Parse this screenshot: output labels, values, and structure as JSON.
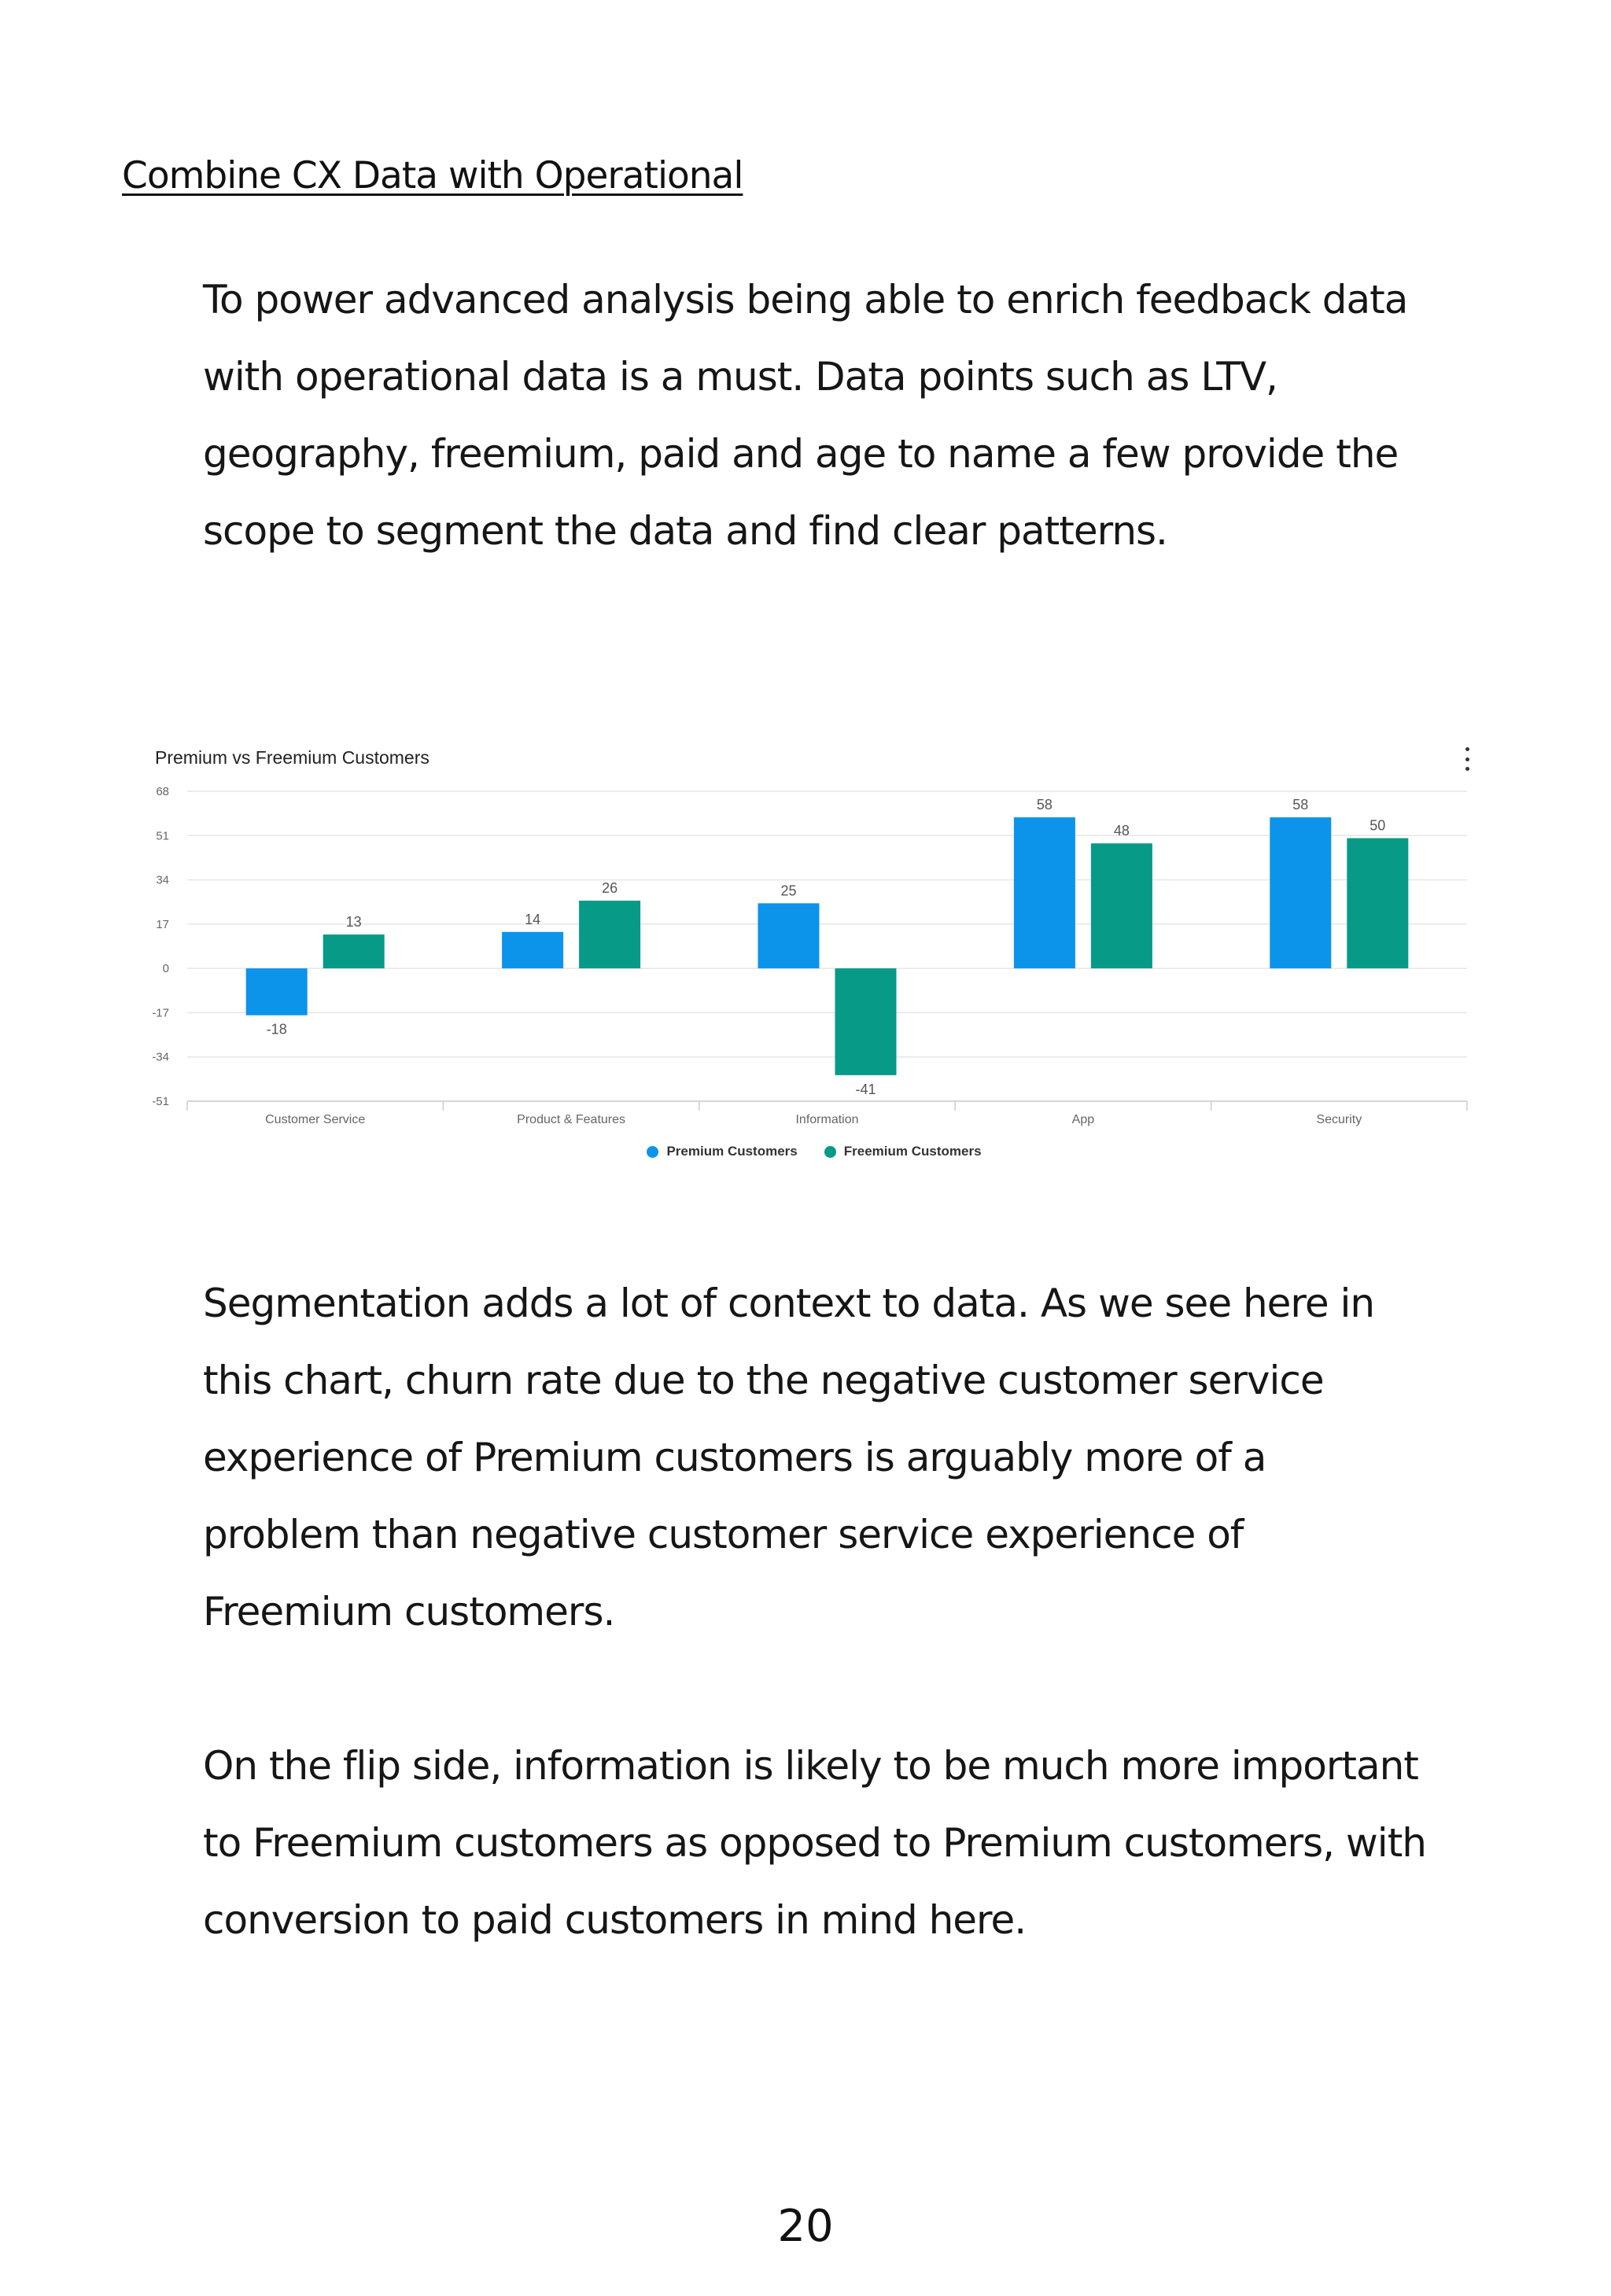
{
  "heading": "Combine CX Data with Operational",
  "paragraphs": [
    "To power advanced analysis being able to enrich feedback data with operational data is a must. Data points such as LTV, geography, freemium, paid and age to name a few provide the scope to segment the data and find clear patterns.",
    "Segmentation adds a lot of context to data. As we see here in this chart, churn rate due to the negative customer service experience of Premium customers is arguably more of a problem than negative customer service experience of Freemium customers.",
    "On the flip side, information is likely to be much more important to Freemium customers as opposed to Premium customers, with conversion to paid customers in mind here."
  ],
  "page_number": "20",
  "colors": {
    "premium": "#0b94ea",
    "freemium": "#079a87"
  },
  "chart_data": {
    "type": "bar",
    "title": "Premium vs Freemium Customers",
    "categories": [
      "Customer Service",
      "Product & Features",
      "Information",
      "App",
      "Security"
    ],
    "series": [
      {
        "name": "Premium Customers",
        "values": [
          -18,
          14,
          25,
          58,
          58
        ]
      },
      {
        "name": "Freemium Customers",
        "values": [
          13,
          26,
          -41,
          48,
          50
        ]
      }
    ],
    "yticks": [
      "68",
      "51",
      "34",
      "17",
      "0",
      "-17",
      "-34",
      "-51"
    ],
    "ylim": [
      -51,
      68
    ],
    "xlabel": "",
    "ylabel": "",
    "grid": true,
    "legend_position": "bottom-center"
  }
}
